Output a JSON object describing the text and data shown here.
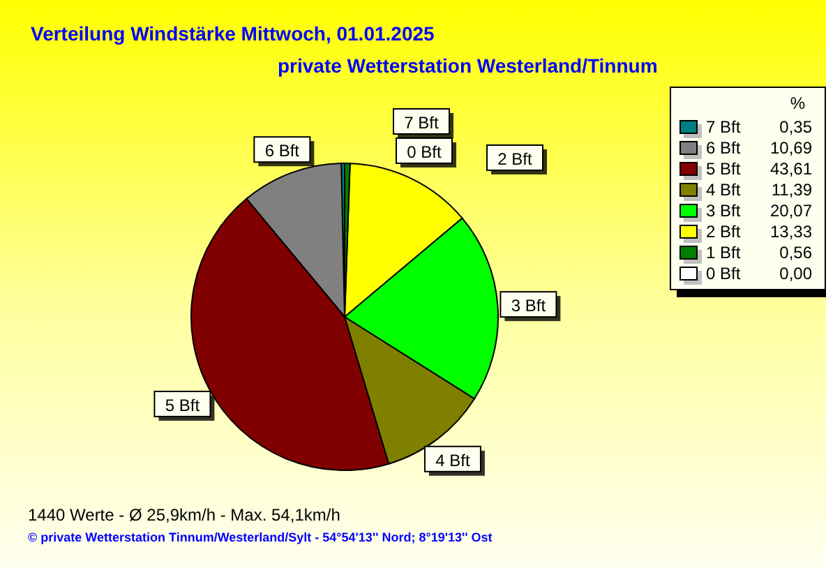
{
  "chart_data": {
    "type": "pie",
    "title": "Verteilung Windstärke  Mittwoch, 01.01.2025",
    "subtitle": "private Wetterstation Westerland/Tinnum",
    "categories": [
      "7 Bft",
      "6 Bft",
      "5 Bft",
      "4 Bft",
      "3 Bft",
      "2 Bft",
      "1 Bft",
      "0 Bft"
    ],
    "values": [
      0.35,
      10.69,
      43.61,
      11.39,
      20.07,
      13.33,
      0.56,
      0.0
    ],
    "value_labels": [
      "0,35",
      "10,69",
      "43,61",
      "11,39",
      "20,07",
      "13,33",
      "0,56",
      "0,00"
    ],
    "colors": [
      "#008080",
      "#808080",
      "#800000",
      "#808000",
      "#00ff00",
      "#ffff00",
      "#008000",
      "#ffffff"
    ],
    "legend": "top right",
    "legend_title": "%",
    "annotations": [
      "1440 Werte   -   Ø 25,9km/h  -  Max. 54,1km/h",
      "© private Wetterstation Tinnum/Westerland/Sylt   -   54°54'13'' Nord; 8°19'13'' Ost"
    ]
  }
}
